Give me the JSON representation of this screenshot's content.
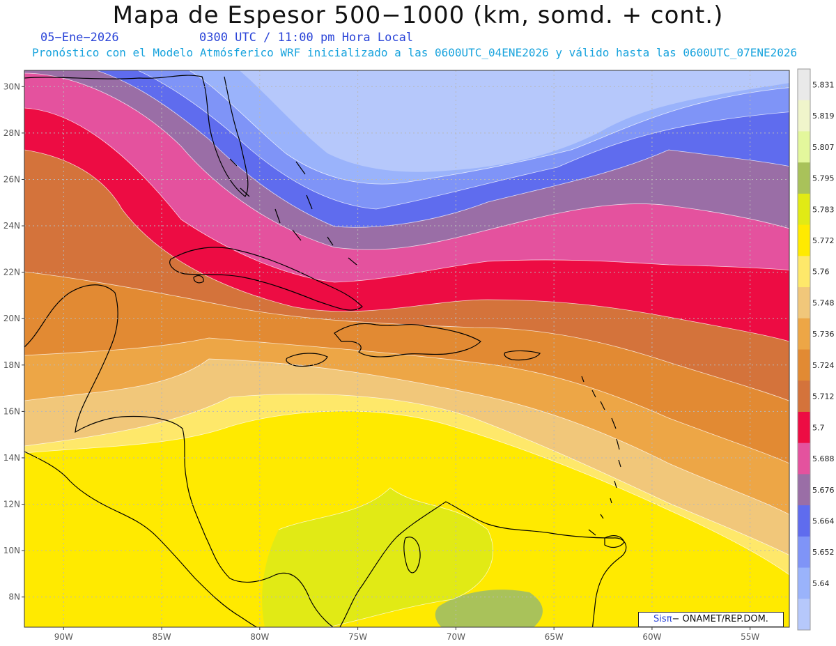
{
  "title": "Mapa de Espesor 500−1000 (km, somd. + cont.)",
  "date": "05−Ene−2026",
  "time_line": "0300 UTC / 11:00 pm Hora Local",
  "description": "Pronóstico con el Modelo Atmósferico WRF inicializado a las 0600UTC_04ENE2026 y válido hasta las  0600UTC_07ENE2026",
  "credit": {
    "brand": "Sis",
    "pi": "π",
    "rest": "− ONAMET/REP.DOM."
  },
  "map": {
    "lat_labels": [
      "30N",
      "28N",
      "26N",
      "24N",
      "22N",
      "20N",
      "18N",
      "16N",
      "14N",
      "12N",
      "10N",
      "8N"
    ],
    "lat_values": [
      30,
      28,
      26,
      24,
      22,
      20,
      18,
      16,
      14,
      12,
      10,
      8
    ],
    "lon_labels": [
      "90W",
      "85W",
      "80W",
      "75W",
      "70W",
      "65W",
      "60W",
      "55W"
    ],
    "lon_values": [
      -90,
      -85,
      -80,
      -75,
      -70,
      -65,
      -60,
      -55
    ],
    "lat_range": [
      6.7,
      30.7
    ],
    "lon_range": [
      -92.0,
      -53.0
    ]
  },
  "colorbar": {
    "labels": [
      "5.831",
      "5.819",
      "5.807",
      "5.795",
      "5.783",
      "5.772",
      "5.76",
      "5.748",
      "5.736",
      "5.724",
      "5.712",
      "5.7",
      "5.688",
      "5.676",
      "5.664",
      "5.652",
      "5.64"
    ],
    "colors": [
      "#e9e9e9",
      "#f0f5cb",
      "#e3f79c",
      "#a9c25a",
      "#e1ea15",
      "#ffea00",
      "#fee86a",
      "#f1c77a",
      "#eda646",
      "#e28a33",
      "#d4733b",
      "#ed0c43",
      "#e4529e",
      "#9a6ea6",
      "#5f6cee",
      "#7f94f7",
      "#9ab3fb",
      "#b6c8fb"
    ]
  }
}
